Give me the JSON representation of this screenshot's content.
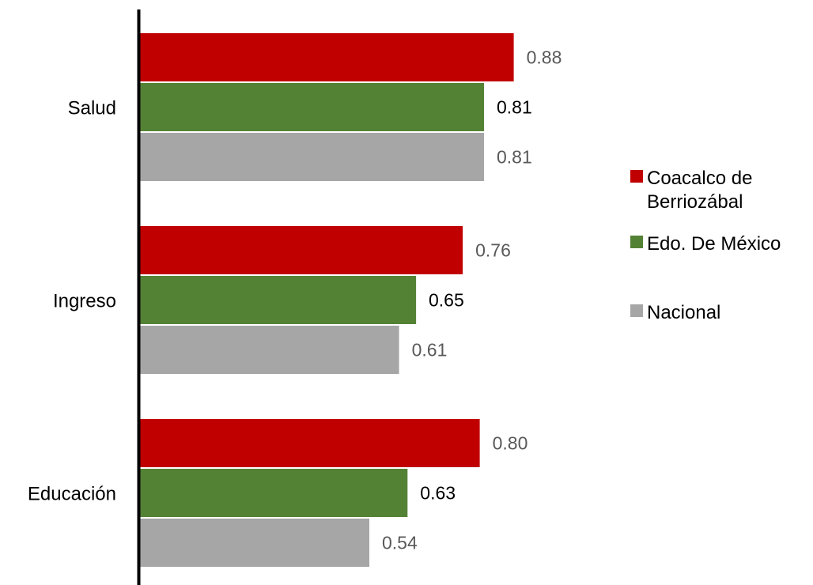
{
  "chart_data": {
    "type": "bar",
    "orientation": "horizontal",
    "categories": [
      "Salud",
      "Ingreso",
      "Educación"
    ],
    "series": [
      {
        "name": "Coacalco de Berriozábal",
        "legend_lines": [
          "Coacalco de",
          "Berriozábal"
        ],
        "color": "#c00000",
        "label_color": "#595959",
        "values": [
          0.88,
          0.76,
          0.8
        ],
        "labels": [
          "0.88",
          "0.76",
          "0.80"
        ]
      },
      {
        "name": "Edo. De México",
        "legend_lines": [
          "Edo. De México"
        ],
        "color": "#548235",
        "label_color": "#000000",
        "values": [
          0.81,
          0.65,
          0.63
        ],
        "labels": [
          "0.81",
          "0.65",
          "0.63"
        ]
      },
      {
        "name": "Nacional",
        "legend_lines": [
          "Nacional"
        ],
        "color": "#a6a6a6",
        "label_color": "#595959",
        "values": [
          0.81,
          0.61,
          0.54
        ],
        "labels": [
          "0.81",
          "0.61",
          "0.54"
        ]
      }
    ],
    "xlim": [
      0,
      1
    ],
    "gridlines": false,
    "legend_position": "right"
  }
}
